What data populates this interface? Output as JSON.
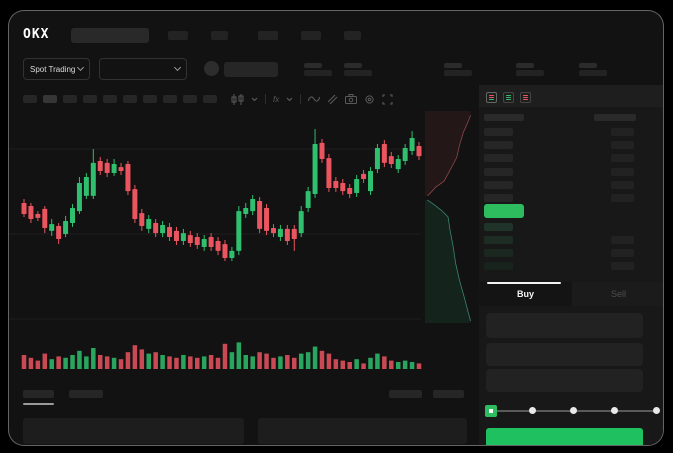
{
  "app": {
    "logo_text": "OKX"
  },
  "header": {
    "nav_skeleton_count": 5
  },
  "market_bar": {
    "market_type_label": "Spot Trading",
    "stat_pair_count": 5
  },
  "chart_toolbar": {
    "timeframe_count": 10,
    "active_timeframe_index": 1,
    "icons": [
      "candle-type-icon",
      "chevron-down-icon",
      "divider",
      "indicator-fx-icon",
      "chevron-down-icon",
      "divider",
      "line-style-icon",
      "compare-icon",
      "camera-icon",
      "settings-gear-icon",
      "fullscreen-icon"
    ]
  },
  "order_book": {
    "view_icons": [
      "book-both-icon",
      "book-bids-icon",
      "book-asks-icon"
    ],
    "ask_row_count": 6,
    "bid_row_count": 4,
    "right_extra_row_count": 3,
    "bid_row_colors": [
      "#203328",
      "#1d2d24",
      "#1a2820",
      "#18231d"
    ]
  },
  "trade_panel": {
    "tabs": [
      {
        "label": "Buy",
        "active": true
      },
      {
        "label": "Sell",
        "active": false
      }
    ],
    "input_count": 3,
    "slider_stop_count": 5
  },
  "colors": {
    "up": "#2fbf6f",
    "down": "#ea5560",
    "accent_green": "#1fc05f",
    "last_price_bg": "#2ebd5e",
    "skeleton": "#242424",
    "depth_ask_fill": "rgba(225,80,92,0.09)",
    "depth_ask_line": "rgba(238,110,120,0.55)",
    "depth_bid_fill": "rgba(45,190,125,0.10)",
    "depth_bid_line": "rgba(90,220,185,0.55)"
  },
  "chart_data": {
    "type": "candlestick",
    "title": "",
    "x_count": 58,
    "scale": {
      "min": 0,
      "max": 100
    },
    "grid": true,
    "candles": [
      [
        58.2,
        60,
        51.8,
        53.2
      ],
      [
        56.8,
        58.2,
        49.1,
        50.9
      ],
      [
        53.2,
        54.5,
        50,
        51.4
      ],
      [
        55.5,
        56.8,
        44.5,
        46.8
      ],
      [
        45.5,
        50.9,
        43.2,
        48.6
      ],
      [
        47.7,
        49.1,
        39.5,
        41.8
      ],
      [
        44.1,
        52.3,
        42.7,
        50
      ],
      [
        49.1,
        57.7,
        47.3,
        55.9
      ],
      [
        54.5,
        70,
        53.2,
        67.3
      ],
      [
        61.4,
        71.8,
        60,
        70
      ],
      [
        61.4,
        82.7,
        60,
        76.4
      ],
      [
        77.3,
        79.1,
        70.9,
        72.7
      ],
      [
        76.4,
        78.2,
        70,
        71.8
      ],
      [
        71.8,
        78.2,
        70.5,
        75.9
      ],
      [
        74.5,
        76.4,
        70.9,
        72.7
      ],
      [
        75.9,
        77.3,
        61.8,
        63.6
      ],
      [
        64.5,
        66.4,
        49.1,
        50.9
      ],
      [
        53.6,
        55.5,
        45.5,
        47.7
      ],
      [
        46.4,
        52.7,
        44.5,
        50.9
      ],
      [
        49.1,
        50.9,
        42.7,
        44.5
      ],
      [
        44.5,
        50,
        42.7,
        48.2
      ],
      [
        47.3,
        49.1,
        40.9,
        42.7
      ],
      [
        45.5,
        47.3,
        39.1,
        40.9
      ],
      [
        40.9,
        46.4,
        39.1,
        44.5
      ],
      [
        43.6,
        45.5,
        38.2,
        40
      ],
      [
        42.7,
        44.5,
        37.3,
        39.1
      ],
      [
        38.2,
        43.6,
        36.4,
        41.8
      ],
      [
        42.7,
        44.5,
        36.4,
        38.2
      ],
      [
        40.9,
        42.7,
        34.5,
        36.4
      ],
      [
        39.5,
        41.4,
        31.8,
        33.2
      ],
      [
        33.2,
        38.2,
        31.8,
        36.4
      ],
      [
        36.4,
        56.8,
        34.5,
        54.5
      ],
      [
        53.2,
        58.2,
        51.4,
        55.9
      ],
      [
        54.5,
        61.8,
        52.7,
        60
      ],
      [
        59.1,
        60.9,
        44.5,
        46.4
      ],
      [
        55.9,
        57.7,
        43.6,
        45.5
      ],
      [
        46.8,
        48.6,
        42.7,
        44.5
      ],
      [
        42.7,
        48.2,
        40.9,
        46.4
      ],
      [
        46.4,
        48.2,
        39.1,
        40.9
      ],
      [
        46.4,
        48.2,
        36.4,
        41.8
      ],
      [
        44.5,
        56.8,
        42.7,
        54.5
      ],
      [
        55.9,
        65.5,
        54.1,
        63.6
      ],
      [
        62.3,
        91.8,
        60.5,
        85
      ],
      [
        85.5,
        87.3,
        76.4,
        78.2
      ],
      [
        78.6,
        80.5,
        63.2,
        65
      ],
      [
        68.2,
        70,
        63.2,
        65
      ],
      [
        67.3,
        69.1,
        61.8,
        63.6
      ],
      [
        65,
        66.8,
        60.5,
        62.3
      ],
      [
        62.7,
        70.9,
        60.9,
        69.1
      ],
      [
        71.4,
        73.2,
        67.3,
        69.1
      ],
      [
        63.6,
        74.5,
        61.8,
        72.7
      ],
      [
        73.6,
        85,
        71.8,
        83.2
      ],
      [
        85,
        86.8,
        74.5,
        76.4
      ],
      [
        79.5,
        81.4,
        74.1,
        75.9
      ],
      [
        73.6,
        80,
        71.8,
        78.2
      ],
      [
        77.3,
        85,
        75.5,
        83.2
      ],
      [
        81.8,
        90.9,
        80,
        87.7
      ],
      [
        84.1,
        85.9,
        77.7,
        79.5
      ]
    ],
    "volumes": [
      50,
      40,
      30,
      55,
      35,
      45,
      40,
      50,
      65,
      45,
      75,
      50,
      45,
      40,
      35,
      60,
      85,
      70,
      55,
      60,
      50,
      45,
      40,
      50,
      45,
      40,
      45,
      50,
      40,
      90,
      60,
      95,
      50,
      45,
      60,
      55,
      40,
      45,
      50,
      40,
      55,
      60,
      80,
      65,
      55,
      35,
      30,
      25,
      35,
      20,
      40,
      55,
      45,
      30,
      25,
      30,
      25,
      20
    ],
    "depth": {
      "asks": [
        [
          0.95,
          0.02
        ],
        [
          0.88,
          0.06
        ],
        [
          0.8,
          0.1
        ],
        [
          0.72,
          0.16
        ],
        [
          0.66,
          0.22
        ],
        [
          0.52,
          0.28
        ],
        [
          0.4,
          0.33
        ],
        [
          0.22,
          0.36
        ],
        [
          0.1,
          0.39
        ],
        [
          0.05,
          0.4
        ]
      ],
      "bids": [
        [
          0.05,
          0.42
        ],
        [
          0.18,
          0.44
        ],
        [
          0.35,
          0.47
        ],
        [
          0.48,
          0.5
        ],
        [
          0.52,
          0.56
        ],
        [
          0.58,
          0.63
        ],
        [
          0.64,
          0.72
        ],
        [
          0.72,
          0.8
        ],
        [
          0.82,
          0.88
        ],
        [
          0.9,
          0.95
        ],
        [
          0.95,
          0.99
        ]
      ]
    }
  }
}
